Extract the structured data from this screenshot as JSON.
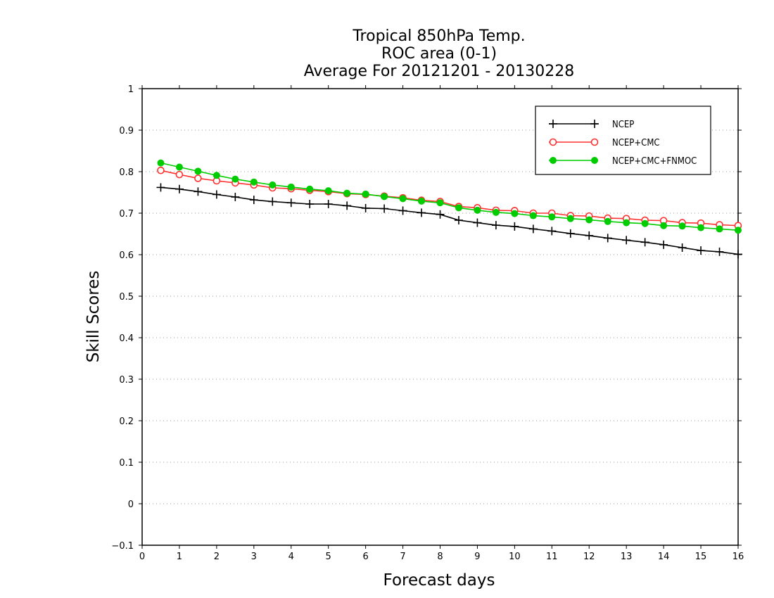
{
  "chart_data": {
    "type": "line",
    "title_lines": [
      "Tropical 850hPa Temp.",
      "ROC area (0-1)",
      "Average For 20121201 - 20130228"
    ],
    "xlabel": "Forecast days",
    "ylabel": "Skill Scores",
    "xlim": [
      0,
      16
    ],
    "ylim": [
      -0.1,
      1
    ],
    "xticks": [
      "0",
      "1",
      "2",
      "3",
      "4",
      "5",
      "6",
      "7",
      "8",
      "9",
      "10",
      "11",
      "12",
      "13",
      "14",
      "15",
      "16"
    ],
    "yticks": [
      "−0.1",
      "0",
      "0.1",
      "0.2",
      "0.3",
      "0.4",
      "0.5",
      "0.6",
      "0.7",
      "0.8",
      "0.9",
      "1"
    ],
    "grid": true,
    "legend_position": "top-right",
    "x": [
      0.5,
      1,
      1.5,
      2,
      2.5,
      3,
      3.5,
      4,
      4.5,
      5,
      5.5,
      6,
      6.5,
      7,
      7.5,
      8,
      8.5,
      9,
      9.5,
      10,
      10.5,
      11,
      11.5,
      12,
      12.5,
      13,
      13.5,
      14,
      14.5,
      15,
      15.5,
      16
    ],
    "series": [
      {
        "name": "NCEP",
        "color": "#000000",
        "marker": "plus",
        "values": [
          0.762,
          0.758,
          0.752,
          0.745,
          0.739,
          0.732,
          0.728,
          0.725,
          0.722,
          0.722,
          0.718,
          0.712,
          0.711,
          0.706,
          0.701,
          0.697,
          0.683,
          0.677,
          0.671,
          0.668,
          0.662,
          0.657,
          0.651,
          0.646,
          0.64,
          0.635,
          0.63,
          0.624,
          0.617,
          0.61,
          0.607,
          0.601
        ]
      },
      {
        "name": "NCEP+CMC",
        "color": "#ff3030",
        "marker": "open-circle",
        "values": [
          0.803,
          0.793,
          0.784,
          0.778,
          0.773,
          0.768,
          0.761,
          0.759,
          0.755,
          0.752,
          0.747,
          0.745,
          0.741,
          0.737,
          0.731,
          0.728,
          0.716,
          0.713,
          0.707,
          0.706,
          0.7,
          0.7,
          0.694,
          0.693,
          0.688,
          0.687,
          0.683,
          0.682,
          0.677,
          0.676,
          0.672,
          0.67
        ]
      },
      {
        "name": "NCEP+CMC+FNMOC",
        "color": "#00cc00",
        "marker": "filled-circle",
        "values": [
          0.821,
          0.811,
          0.801,
          0.791,
          0.782,
          0.775,
          0.768,
          0.763,
          0.758,
          0.754,
          0.748,
          0.746,
          0.74,
          0.735,
          0.729,
          0.725,
          0.713,
          0.707,
          0.702,
          0.699,
          0.694,
          0.691,
          0.687,
          0.684,
          0.68,
          0.677,
          0.675,
          0.67,
          0.669,
          0.665,
          0.662,
          0.659
        ]
      }
    ]
  }
}
